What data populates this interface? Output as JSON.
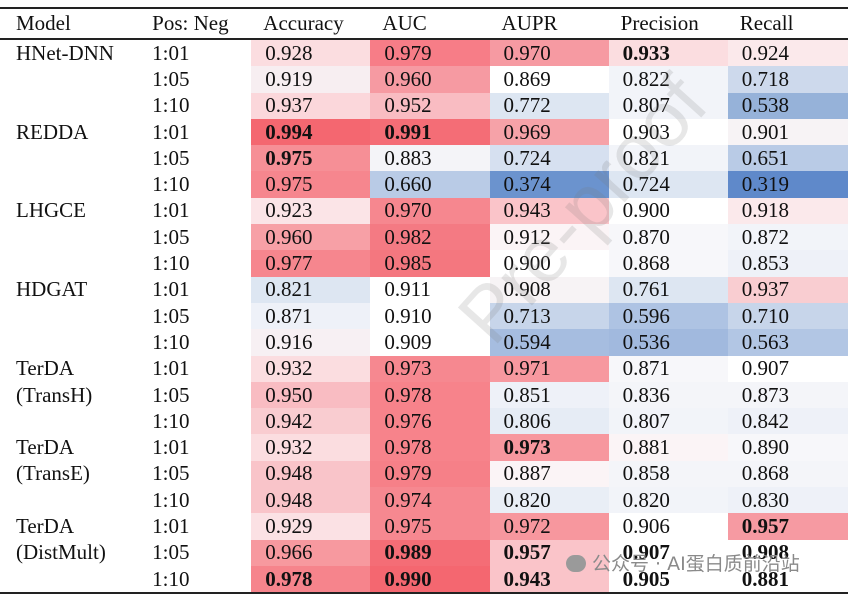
{
  "columns": [
    "Model",
    "Pos: Neg",
    "Accuracy",
    "AUC",
    "AUPR",
    "Precision",
    "Recall"
  ],
  "rows": [
    {
      "model": "HNet-DNN",
      "ratio": "1:01",
      "values": [
        "0.928",
        "0.979",
        "0.970",
        "0.933",
        "0.924"
      ],
      "bold": [
        false,
        false,
        false,
        true,
        false
      ],
      "colors": [
        "#fbdde0",
        "#f77d87",
        "#f69aa2",
        "#fbdde0",
        "#fbe9eb"
      ]
    },
    {
      "model": "",
      "ratio": "1:05",
      "values": [
        "0.919",
        "0.960",
        "0.869",
        "0.822",
        "0.718"
      ],
      "bold": [
        false,
        false,
        false,
        false,
        false
      ],
      "colors": [
        "#f7eef1",
        "#f69aa2",
        "#ffffff",
        "#f2f4f9",
        "#cdd9ec"
      ]
    },
    {
      "model": "",
      "ratio": "1:10",
      "values": [
        "0.937",
        "0.952",
        "0.772",
        "0.807",
        "0.538"
      ],
      "bold": [
        false,
        false,
        false,
        false,
        false
      ],
      "colors": [
        "#fbd7db",
        "#f9bcc2",
        "#dde6f2",
        "#f2f4f9",
        "#96b2d9"
      ]
    },
    {
      "model": "REDDA",
      "ratio": "1:01",
      "values": [
        "0.994",
        "0.991",
        "0.969",
        "0.903",
        "0.901"
      ],
      "bold": [
        true,
        true,
        false,
        false,
        false
      ],
      "colors": [
        "#f46770",
        "#f46d76",
        "#f6a2a8",
        "#ffffff",
        "#f7f3f5"
      ]
    },
    {
      "model": "",
      "ratio": "1:05",
      "values": [
        "0.975",
        "0.883",
        "0.724",
        "0.821",
        "0.651"
      ],
      "bold": [
        true,
        false,
        false,
        false,
        false
      ],
      "colors": [
        "#f68f96",
        "#f4f4f8",
        "#d6e0f0",
        "#f2f4f9",
        "#b9cbe6"
      ]
    },
    {
      "model": "",
      "ratio": "1:10",
      "values": [
        "0.975",
        "0.660",
        "0.374",
        "0.724",
        "0.319"
      ],
      "bold": [
        false,
        false,
        false,
        false,
        false
      ],
      "colors": [
        "#f6868e",
        "#b9cbe6",
        "#6b93ce",
        "#dde6f2",
        "#5f89ca"
      ]
    },
    {
      "model": "LHGCE",
      "ratio": "1:01",
      "values": [
        "0.923",
        "0.970",
        "0.943",
        "0.900",
        "0.918"
      ],
      "bold": [
        false,
        false,
        false,
        false,
        false
      ],
      "colors": [
        "#fbe4e7",
        "#f6878f",
        "#fac4c9",
        "#ffffff",
        "#fbe9eb"
      ]
    },
    {
      "model": "",
      "ratio": "1:05",
      "values": [
        "0.960",
        "0.982",
        "0.912",
        "0.870",
        "0.872"
      ],
      "bold": [
        false,
        false,
        false,
        false,
        false
      ],
      "colors": [
        "#f7a0a6",
        "#f47a83",
        "#fbf4f6",
        "#f7f7fa",
        "#f2f4f9"
      ]
    },
    {
      "model": "",
      "ratio": "1:10",
      "values": [
        "0.977",
        "0.985",
        "0.900",
        "0.868",
        "0.853"
      ],
      "bold": [
        false,
        false,
        false,
        false,
        false
      ],
      "colors": [
        "#f6868e",
        "#f4777f",
        "#ffffff",
        "#f7f7fa",
        "#eef1f8"
      ]
    },
    {
      "model": "HDGAT",
      "ratio": "1:01",
      "values": [
        "0.821",
        "0.911",
        "0.908",
        "0.761",
        "0.937"
      ],
      "bold": [
        false,
        false,
        false,
        false,
        false
      ],
      "colors": [
        "#dde6f2",
        "#ffffff",
        "#f7f3f5",
        "#dde6f2",
        "#f9cdd1"
      ]
    },
    {
      "model": "",
      "ratio": "1:05",
      "values": [
        "0.871",
        "0.910",
        "0.713",
        "0.596",
        "0.710"
      ],
      "bold": [
        false,
        false,
        false,
        false,
        false
      ],
      "colors": [
        "#eef1f8",
        "#ffffff",
        "#c7d5ea",
        "#aec3e3",
        "#c7d5ea"
      ]
    },
    {
      "model": "",
      "ratio": "1:10",
      "values": [
        "0.916",
        "0.909",
        "0.594",
        "0.536",
        "0.563"
      ],
      "bold": [
        false,
        false,
        false,
        false,
        false
      ],
      "colors": [
        "#f7f0f3",
        "#ffffff",
        "#a6bde0",
        "#a1b9de",
        "#b2c6e4"
      ]
    },
    {
      "model": "TerDA",
      "ratio": "1:01",
      "values": [
        "0.932",
        "0.973",
        "0.971",
        "0.871",
        "0.907"
      ],
      "bold": [
        false,
        false,
        false,
        false,
        false
      ],
      "colors": [
        "#fbdde0",
        "#f68890",
        "#f7989f",
        "#f7f7fa",
        "#ffffff"
      ]
    },
    {
      "model": "(TransH)",
      "ratio": "1:05",
      "values": [
        "0.950",
        "0.978",
        "0.851",
        "0.836",
        "0.873"
      ],
      "bold": [
        false,
        false,
        false,
        false,
        false
      ],
      "colors": [
        "#f9bcc2",
        "#f7838b",
        "#eef1f8",
        "#f4f5f9",
        "#f4f5f9"
      ]
    },
    {
      "model": "",
      "ratio": "1:10",
      "values": [
        "0.942",
        "0.976",
        "0.806",
        "0.807",
        "0.842"
      ],
      "bold": [
        false,
        false,
        false,
        false,
        false
      ],
      "colors": [
        "#f9ccd0",
        "#f7838b",
        "#e6ecf5",
        "#f2f4f9",
        "#eef1f8"
      ]
    },
    {
      "model": "TerDA",
      "ratio": "1:01",
      "values": [
        "0.932",
        "0.978",
        "0.973",
        "0.881",
        "0.890"
      ],
      "bold": [
        false,
        false,
        true,
        false,
        false
      ],
      "colors": [
        "#fbdde0",
        "#f7838b",
        "#f7979e",
        "#fbf4f6",
        "#f7f7fa"
      ]
    },
    {
      "model": "(TransE)",
      "ratio": "1:05",
      "values": [
        "0.948",
        "0.979",
        "0.887",
        "0.858",
        "0.868"
      ],
      "bold": [
        false,
        false,
        false,
        false,
        false
      ],
      "colors": [
        "#f9c4c9",
        "#f68088",
        "#fbf4f6",
        "#f4f5f9",
        "#f4f5f9"
      ]
    },
    {
      "model": "",
      "ratio": "1:10",
      "values": [
        "0.948",
        "0.974",
        "0.820",
        "0.820",
        "0.830"
      ],
      "bold": [
        false,
        false,
        false,
        false,
        false
      ],
      "colors": [
        "#f9c4c9",
        "#f68890",
        "#e9eef6",
        "#f2f4f9",
        "#eef1f8"
      ]
    },
    {
      "model": "TerDA",
      "ratio": "1:01",
      "values": [
        "0.929",
        "0.975",
        "0.972",
        "0.906",
        "0.957"
      ],
      "bold": [
        false,
        false,
        false,
        false,
        true
      ],
      "colors": [
        "#fbe1e4",
        "#f68890",
        "#f7979e",
        "#ffffff",
        "#f69aa2"
      ]
    },
    {
      "model": "(DistMult)",
      "ratio": "1:05",
      "values": [
        "0.966",
        "0.989",
        "0.957",
        "0.907",
        "0.908"
      ],
      "bold": [
        false,
        true,
        true,
        true,
        true
      ],
      "colors": [
        "#f7999f",
        "#f46d76",
        "#fac4c9",
        "#ffffff",
        "#ffffff"
      ]
    },
    {
      "model": "",
      "ratio": "1:10",
      "values": [
        "0.978",
        "0.990",
        "0.943",
        "0.905",
        "0.881"
      ],
      "bold": [
        true,
        true,
        true,
        true,
        true
      ],
      "colors": [
        "#f6848c",
        "#f46770",
        "#fac4c9",
        "#ffffff",
        "#ffffff"
      ]
    }
  ],
  "watermark": "Pre-proof",
  "badge": "公众号 · AI蛋白质前沿站"
}
